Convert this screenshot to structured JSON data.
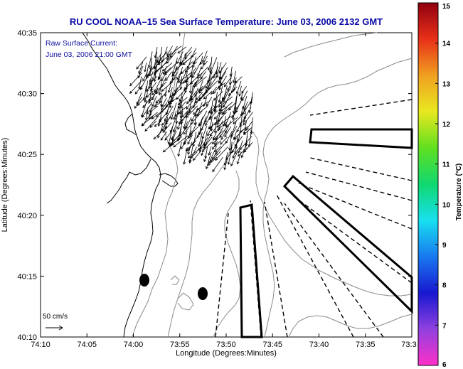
{
  "title": "RU COOL  NOAA–15  Sea Surface Temperature:  June 03, 2006 2132 GMT",
  "annotation": {
    "line1": "Raw Surface Current:",
    "line2": "June 03, 2006 21:00 GMT"
  },
  "axes": {
    "xlabel": "Longitude (Degrees:Minutes)",
    "ylabel": "Latitude (Degrees:Minutes)",
    "xticks": [
      "74:10",
      "74:05",
      "74:00",
      "73:55",
      "73:50",
      "73:45",
      "73:40",
      "73:35",
      "73:3"
    ],
    "yticks": [
      "40:35",
      "40:30",
      "40:25",
      "40:20",
      "40:15",
      "40:10"
    ]
  },
  "scale_bar": {
    "label": "50 cm/s"
  },
  "colorbar": {
    "label": "Temperature (°C)",
    "ticks": [
      "15",
      "14",
      "13",
      "12",
      "11",
      "10",
      "9",
      "8",
      "7",
      "6"
    ],
    "colors": [
      "#ff30c8",
      "#9040e0",
      "#1818d0",
      "#1878f0",
      "#18e0f0",
      "#10d870",
      "#60e020",
      "#e8e820",
      "#f0a020",
      "#e83018",
      "#900010"
    ]
  }
}
